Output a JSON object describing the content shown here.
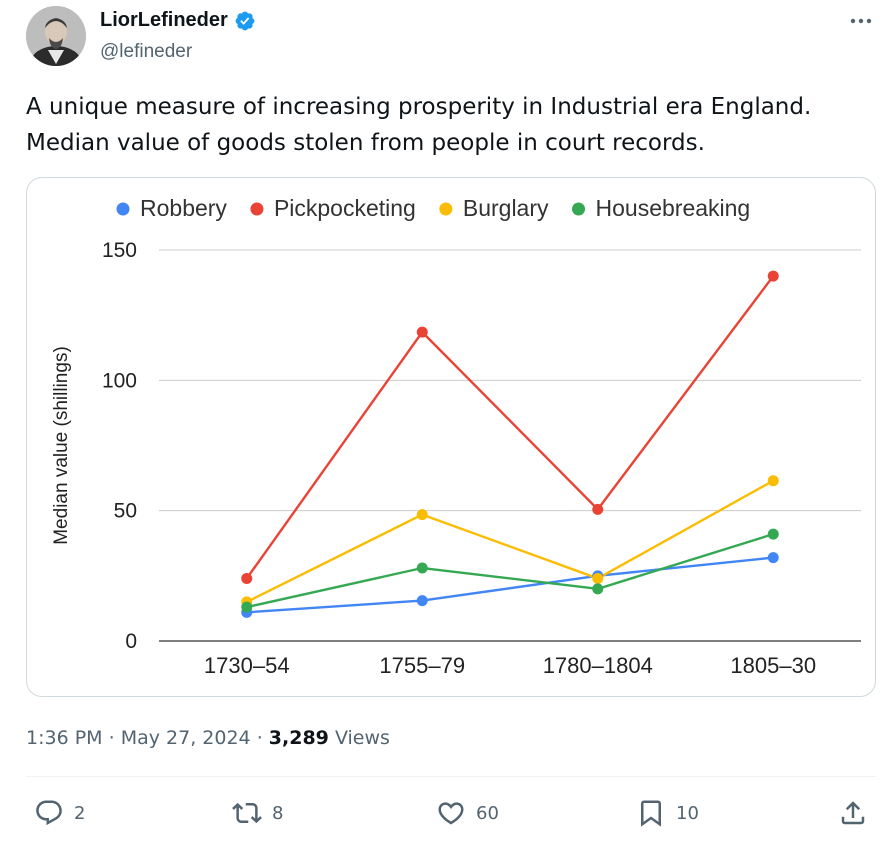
{
  "author": {
    "display_name": "LiorLefineder",
    "handle": "@lefineder",
    "verified": true,
    "avatar_icon": "avatar-portrait-icon"
  },
  "tweet": {
    "text_line1": "A unique measure of increasing prosperity in Industrial era  England.",
    "text_line2": "Median value of goods stolen from people in court records."
  },
  "chart_data": {
    "type": "line",
    "title": "",
    "xlabel": "",
    "ylabel": "Median value (shillings)",
    "categories": [
      "1730–54",
      "1755–79",
      "1780–1804",
      "1805–30"
    ],
    "ylim": [
      0,
      150
    ],
    "yticks": [
      "0",
      "50",
      "100",
      "150"
    ],
    "grid": true,
    "legend_position": "top",
    "series": [
      {
        "name": "Robbery",
        "color": "#4285f4",
        "values": [
          11,
          15.5,
          25,
          32
        ]
      },
      {
        "name": "Pickpocketing",
        "color": "#ea4335",
        "values": [
          24,
          118.5,
          50.5,
          140
        ]
      },
      {
        "name": "Burglary",
        "color": "#fbbc04",
        "values": [
          15,
          48.5,
          24,
          61.5
        ]
      },
      {
        "name": "Housebreaking",
        "color": "#34a853",
        "values": [
          13,
          28,
          20,
          41
        ]
      }
    ]
  },
  "meta": {
    "time": "1:36 PM",
    "separator": "·",
    "date": "May 27, 2024",
    "views_count": "3,289",
    "views_label": "Views"
  },
  "actions": {
    "replies": "2",
    "reposts": "8",
    "likes": "60",
    "bookmarks": "10"
  },
  "colors": {
    "text_primary": "#0f1419",
    "text_secondary": "#536471",
    "verified_blue": "#1d9bf0",
    "border": "#cfd9de"
  }
}
